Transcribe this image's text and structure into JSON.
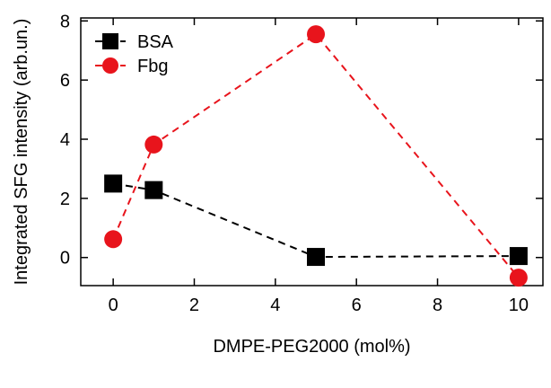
{
  "chart_data": {
    "type": "line",
    "title": "",
    "xlabel": "DMPE-PEG2000 (mol%)",
    "ylabel": "Integrated SFG intensity (arb.un.)",
    "xlim": [
      -0.8,
      10.6
    ],
    "ylim": [
      -0.95,
      8.1
    ],
    "x_ticks": [
      0,
      2,
      4,
      6,
      8,
      10
    ],
    "x_tick_labels": [
      "0",
      "2",
      "4",
      "6",
      "8",
      "10"
    ],
    "y_ticks": [
      0,
      2,
      4,
      6,
      8
    ],
    "y_tick_labels": [
      "0",
      "2",
      "4",
      "6",
      "8"
    ],
    "grid": false,
    "legend_position": "top-left",
    "series": [
      {
        "name": "BSA",
        "marker": "square",
        "line_style": "dashed",
        "color": "#000000",
        "x": [
          0,
          1,
          5,
          10
        ],
        "y": [
          2.5,
          2.28,
          0.02,
          0.05
        ]
      },
      {
        "name": "Fbg",
        "marker": "circle",
        "line_style": "dashed",
        "color": "#e8141c",
        "x": [
          0,
          1,
          5,
          10
        ],
        "y": [
          0.62,
          3.82,
          7.55,
          -0.68
        ]
      }
    ]
  }
}
